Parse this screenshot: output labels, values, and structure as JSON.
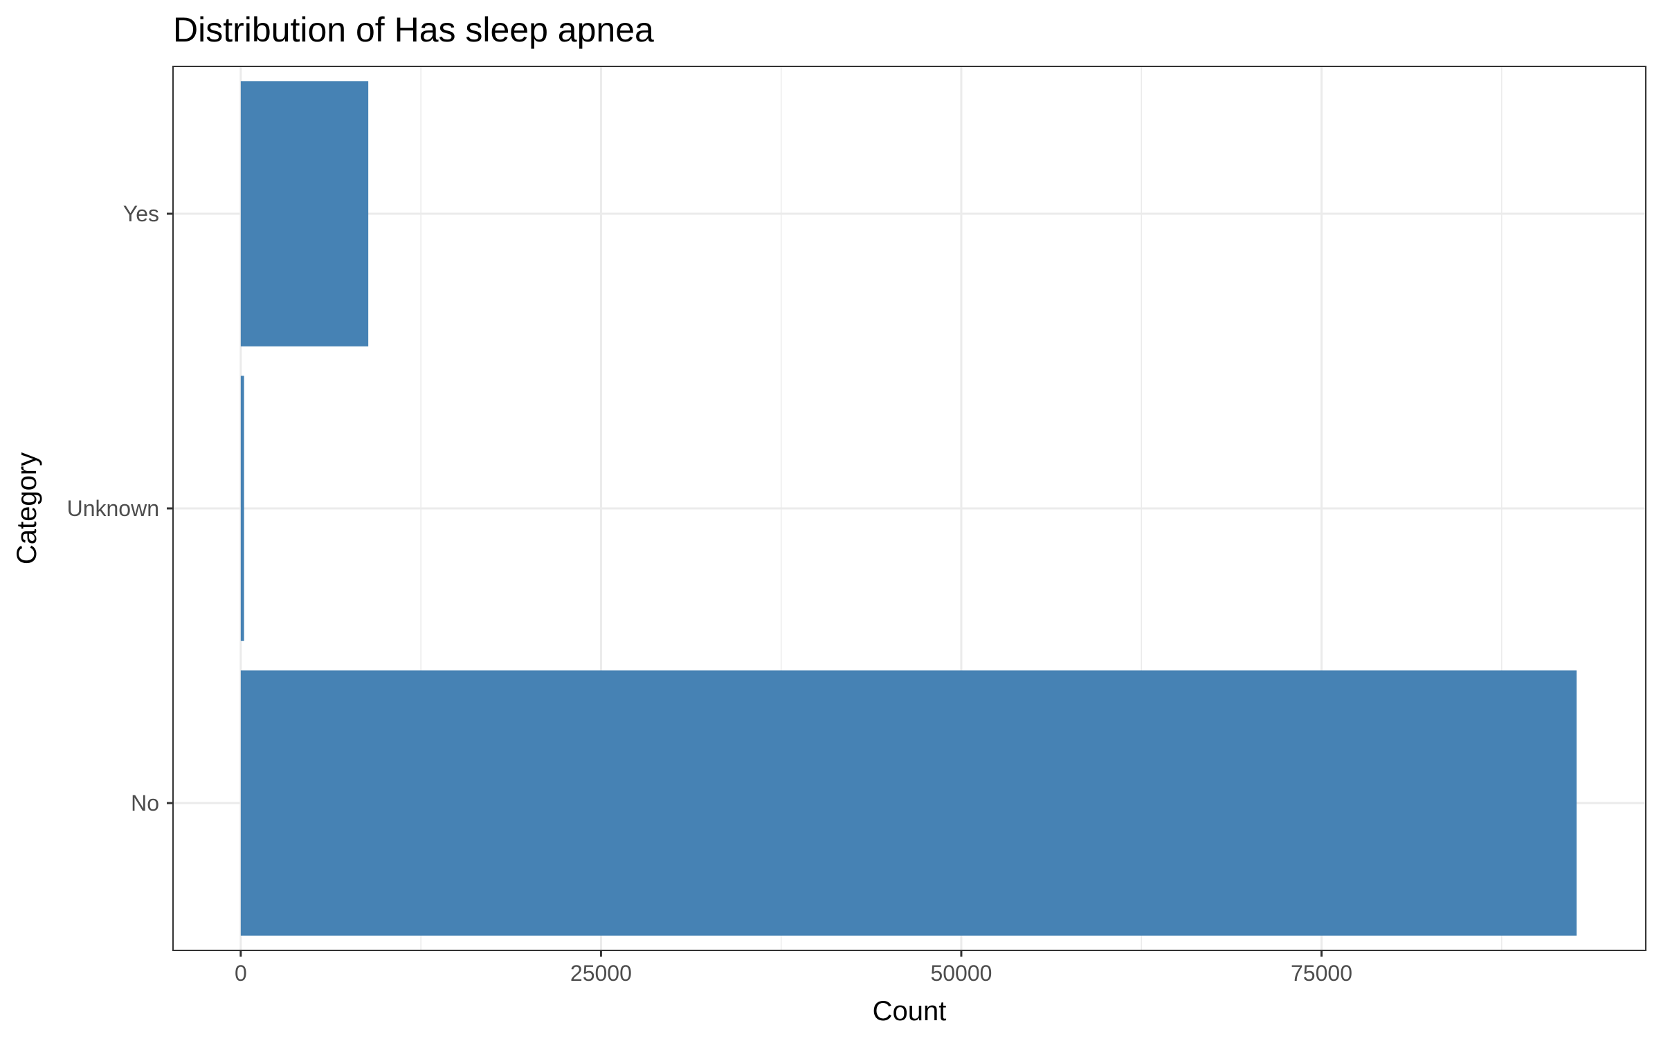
{
  "chart_data": {
    "type": "bar",
    "orientation": "horizontal",
    "title": "Distribution of Has sleep apnea",
    "xlabel": "Count",
    "ylabel": "Category",
    "categories": [
      "No",
      "Unknown",
      "Yes"
    ],
    "values": [
      92700,
      230,
      8850
    ],
    "xlim": [
      -4700,
      97500
    ],
    "x_ticks": [
      0,
      25000,
      50000,
      75000
    ],
    "x_tick_labels": [
      "0",
      "25000",
      "50000",
      "75000"
    ],
    "grid": true,
    "legend": "none",
    "colors": {
      "bar": "#4682b4",
      "grid": "#ebebeb",
      "panel_border": "#333333",
      "tick_text": "#4d4d4d"
    }
  }
}
